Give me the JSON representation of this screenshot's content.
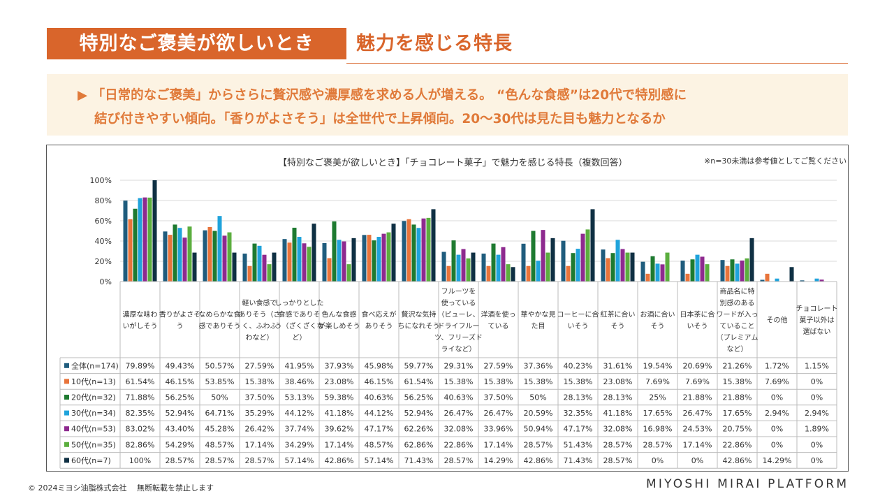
{
  "page": {
    "title_badge": "特別なご褒美が欲しいとき",
    "title_right": "魅力を感じる特長",
    "summary_line1": "▶ 「日常的なご褒美」からさらに贅沢感や濃厚感を求める人が増える。 “色んな食感”は20代で特別感に",
    "summary_line2": "結び付きやすい傾向。「香りがよさそう」は全世代で上昇傾向。20～30代は見た目も魅力となるか",
    "footer_copyright": "© 2024ミヨシ油脂株式会社　 無断転載を禁止します",
    "footer_brand": "MIYOSHI MIRAI PLATFORM"
  },
  "chart_data": {
    "type": "bar",
    "title": "【特別なご褒美が欲しいとき】「チョコレート菓子」で魅力を感じる特長（複数回答）",
    "note": "※n=30未満は参考値としてご覧ください",
    "ylim": [
      0,
      100
    ],
    "yticks": [
      "0%",
      "20%",
      "40%",
      "60%",
      "80%",
      "100%"
    ],
    "grid": true,
    "categories": [
      [
        "濃厚な味わ",
        "いがしそう"
      ],
      [
        "香りがよさそ",
        "う"
      ],
      [
        "なめらかな食",
        "感でありそう"
      ],
      [
        "軽い食感で",
        "ありそう（さ",
        "く、ふわふ",
        "わなど）"
      ],
      [
        "しっかりとした",
        "食感でありそ",
        "う（ざくざくな",
        "ど）"
      ],
      [
        "色んな食感",
        "が楽しめそう"
      ],
      [
        "食べ応えが",
        "ありそう"
      ],
      [
        "贅沢な気持",
        "ちになれそう"
      ],
      [
        "フルーツを",
        "使っている",
        "（ピューレ、",
        "ドライフルー",
        "ツ、フリーズド",
        "ライなど）"
      ],
      [
        "洋酒を使っ",
        "ている"
      ],
      [
        "華やかな見",
        "た目"
      ],
      [
        "コーヒーに合",
        "いそう"
      ],
      [
        "紅茶に合い",
        "そう"
      ],
      [
        "お酒に合い",
        "そう"
      ],
      [
        "日本茶に合",
        "いそう"
      ],
      [
        "商品名に特",
        "別感のある",
        "ワードが入っ",
        "ていること",
        "（プレミアム",
        "など）"
      ],
      [
        "その他"
      ],
      [
        "チョコレート",
        "菓子以外は",
        "選ばない"
      ]
    ],
    "series": [
      {
        "name": "全体(n=174)",
        "color": "#1F5C7D",
        "values": [
          79.89,
          49.43,
          50.57,
          27.59,
          41.95,
          37.93,
          45.98,
          59.77,
          29.31,
          27.59,
          37.36,
          40.23,
          31.61,
          19.54,
          20.69,
          21.26,
          1.72,
          1.15
        ],
        "labels": [
          "79.89%",
          "49.43%",
          "50.57%",
          "27.59%",
          "41.95%",
          "37.93%",
          "45.98%",
          "59.77%",
          "29.31%",
          "27.59%",
          "37.36%",
          "40.23%",
          "31.61%",
          "19.54%",
          "20.69%",
          "21.26%",
          "1.72%",
          "1.15%"
        ]
      },
      {
        "name": "10代(n=13)",
        "color": "#E8743B",
        "values": [
          61.54,
          46.15,
          53.85,
          15.38,
          38.46,
          23.08,
          46.15,
          61.54,
          15.38,
          15.38,
          15.38,
          15.38,
          23.08,
          7.69,
          7.69,
          15.38,
          7.69,
          0
        ],
        "labels": [
          "61.54%",
          "46.15%",
          "53.85%",
          "15.38%",
          "38.46%",
          "23.08%",
          "46.15%",
          "61.54%",
          "15.38%",
          "15.38%",
          "15.38%",
          "15.38%",
          "23.08%",
          "7.69%",
          "7.69%",
          "15.38%",
          "7.69%",
          "0%"
        ]
      },
      {
        "name": "20代(n=32)",
        "color": "#1E7A30",
        "values": [
          71.88,
          56.25,
          50,
          37.5,
          53.13,
          59.38,
          40.63,
          56.25,
          40.63,
          37.5,
          50,
          28.13,
          28.13,
          25,
          21.88,
          21.88,
          0,
          0
        ],
        "labels": [
          "71.88%",
          "56.25%",
          "50%",
          "37.50%",
          "53.13%",
          "59.38%",
          "40.63%",
          "56.25%",
          "40.63%",
          "37.50%",
          "50%",
          "28.13%",
          "28.13%",
          "25%",
          "21.88%",
          "21.88%",
          "0%",
          "0%"
        ]
      },
      {
        "name": "30代(n=34)",
        "color": "#1FA3DB",
        "values": [
          82.35,
          52.94,
          64.71,
          35.29,
          44.12,
          41.18,
          44.12,
          52.94,
          26.47,
          26.47,
          20.59,
          32.35,
          41.18,
          17.65,
          26.47,
          17.65,
          2.94,
          2.94
        ],
        "labels": [
          "82.35%",
          "52.94%",
          "64.71%",
          "35.29%",
          "44.12%",
          "41.18%",
          "44.12%",
          "52.94%",
          "26.47%",
          "26.47%",
          "20.59%",
          "32.35%",
          "41.18%",
          "17.65%",
          "26.47%",
          "17.65%",
          "2.94%",
          "2.94%"
        ]
      },
      {
        "name": "40代(n=53)",
        "color": "#8E2A8F",
        "values": [
          83.02,
          43.4,
          45.28,
          26.42,
          37.74,
          39.62,
          47.17,
          62.26,
          32.08,
          33.96,
          50.94,
          47.17,
          32.08,
          16.98,
          24.53,
          20.75,
          0,
          1.89
        ],
        "labels": [
          "83.02%",
          "43.40%",
          "45.28%",
          "26.42%",
          "37.74%",
          "39.62%",
          "47.17%",
          "62.26%",
          "32.08%",
          "33.96%",
          "50.94%",
          "47.17%",
          "32.08%",
          "16.98%",
          "24.53%",
          "20.75%",
          "0%",
          "1.89%"
        ]
      },
      {
        "name": "50代(n=35)",
        "color": "#5BAE3E",
        "values": [
          82.86,
          54.29,
          48.57,
          17.14,
          34.29,
          17.14,
          48.57,
          62.86,
          22.86,
          17.14,
          28.57,
          51.43,
          28.57,
          28.57,
          17.14,
          22.86,
          0,
          0
        ],
        "labels": [
          "82.86%",
          "54.29%",
          "48.57%",
          "17.14%",
          "34.29%",
          "17.14%",
          "48.57%",
          "62.86%",
          "22.86%",
          "17.14%",
          "28.57%",
          "51.43%",
          "28.57%",
          "28.57%",
          "17.14%",
          "22.86%",
          "0%",
          "0%"
        ]
      },
      {
        "name": "60代(n=7)",
        "color": "#0F3043",
        "values": [
          100,
          28.57,
          28.57,
          28.57,
          57.14,
          42.86,
          57.14,
          71.43,
          28.57,
          14.29,
          42.86,
          71.43,
          28.57,
          0,
          0,
          42.86,
          14.29,
          0
        ],
        "labels": [
          "100%",
          "28.57%",
          "28.57%",
          "28.57%",
          "57.14%",
          "42.86%",
          "57.14%",
          "71.43%",
          "28.57%",
          "14.29%",
          "42.86%",
          "71.43%",
          "28.57%",
          "0%",
          "0%",
          "42.86%",
          "14.29%",
          "0%"
        ]
      }
    ]
  }
}
